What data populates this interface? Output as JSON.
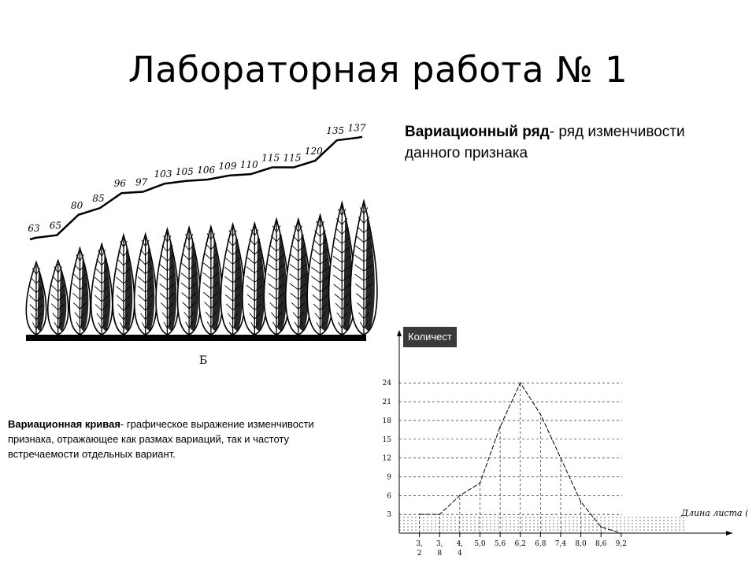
{
  "title": "Лабораторная работа № 1",
  "series_definition": {
    "term": "Вариационный ряд",
    "text": "- ряд изменчивости данного признака"
  },
  "curve_definition": {
    "term": "Вариационная кривая",
    "text": "- графическое выражение изменчивости признака, отражающее как размах вариаций, так и частоту встречаемости отдельных вариант."
  },
  "leaf_figure": {
    "lengths": [
      "63",
      "65",
      "80",
      "85",
      "96",
      "97",
      "103",
      "105",
      "106",
      "109",
      "110",
      "115",
      "115",
      "120",
      "135",
      "137"
    ],
    "caption": "Б"
  },
  "chart_data": {
    "type": "line",
    "ylabel": "Количест",
    "xlabel": "Длина листа (x)",
    "yticks": [
      "3",
      "6",
      "9",
      "12",
      "15",
      "18",
      "21",
      "24"
    ],
    "xticks": [
      "3,2",
      "3,8",
      "4,4",
      "5,0",
      "5,6",
      "6,2",
      "6,8",
      "7,4",
      "8,0",
      "8,6",
      "9,2"
    ],
    "x": [
      3.2,
      3.8,
      4.4,
      5.0,
      5.6,
      6.2,
      6.8,
      7.4,
      8.0,
      8.6,
      9.2
    ],
    "y": [
      3,
      3,
      6,
      8,
      17,
      24,
      19,
      12,
      5,
      1,
      0
    ],
    "ylim": [
      0,
      27
    ],
    "xlim": [
      2.6,
      10.0
    ],
    "grid": "dashed"
  }
}
